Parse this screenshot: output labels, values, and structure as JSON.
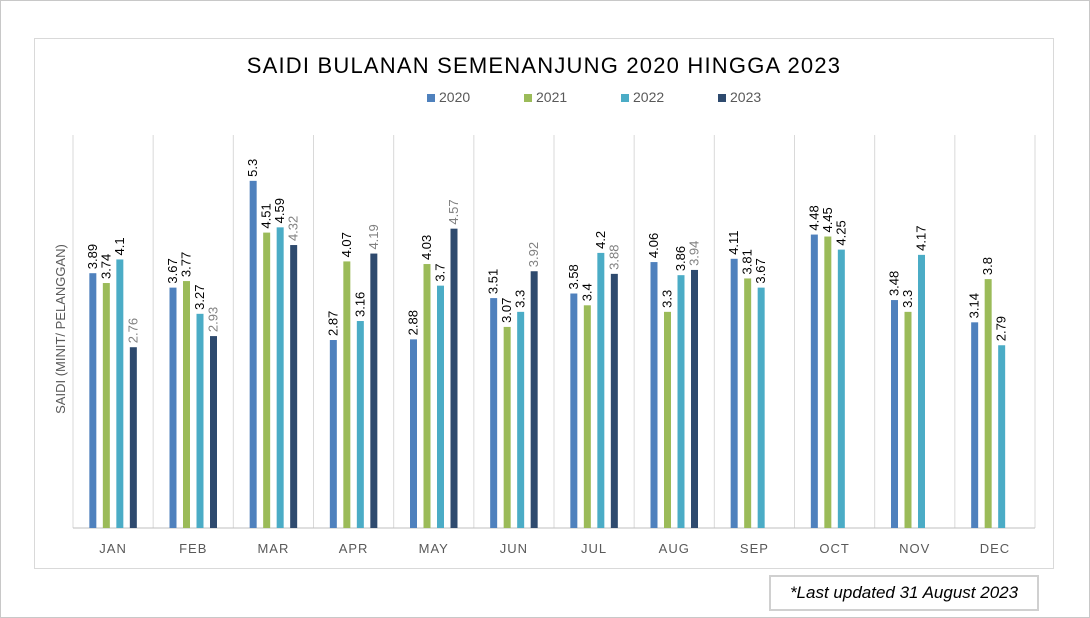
{
  "note": {
    "text": "*Last updated 31 August 2023"
  },
  "chart_data": {
    "type": "bar",
    "title": "SAIDI BULANAN SEMENANJUNG 2020 HINGGA 2023",
    "ylabel": "SAIDI (MINIT/ PELANGGAN)",
    "xlabel": "",
    "categories": [
      "JAN",
      "FEB",
      "MAR",
      "APR",
      "MAY",
      "JUN",
      "JUL",
      "AUG",
      "SEP",
      "OCT",
      "NOV",
      "DEC"
    ],
    "ylim": [
      0,
      6
    ],
    "grid": "vertical-category-separators",
    "legend_position": "top",
    "series": [
      {
        "name": "2020",
        "color": "#4f81bd",
        "values": [
          3.89,
          3.67,
          5.3,
          2.87,
          2.88,
          3.51,
          3.58,
          4.06,
          4.11,
          4.48,
          3.48,
          3.14
        ]
      },
      {
        "name": "2021",
        "color": "#9bbb59",
        "values": [
          3.74,
          3.77,
          4.51,
          4.07,
          4.03,
          3.07,
          3.4,
          3.3,
          3.81,
          4.45,
          3.3,
          3.8
        ]
      },
      {
        "name": "2022",
        "color": "#4bacc6",
        "values": [
          4.1,
          3.27,
          4.59,
          3.16,
          3.7,
          3.3,
          4.2,
          3.86,
          3.67,
          4.25,
          4.17,
          2.79
        ]
      },
      {
        "name": "2023",
        "color": "#2e4a6e",
        "values": [
          2.76,
          2.93,
          4.32,
          4.19,
          4.57,
          3.92,
          3.88,
          3.94,
          null,
          null,
          null,
          null
        ]
      }
    ],
    "label_colors": {
      "default": "#000000",
      "2023": "#808080"
    }
  }
}
